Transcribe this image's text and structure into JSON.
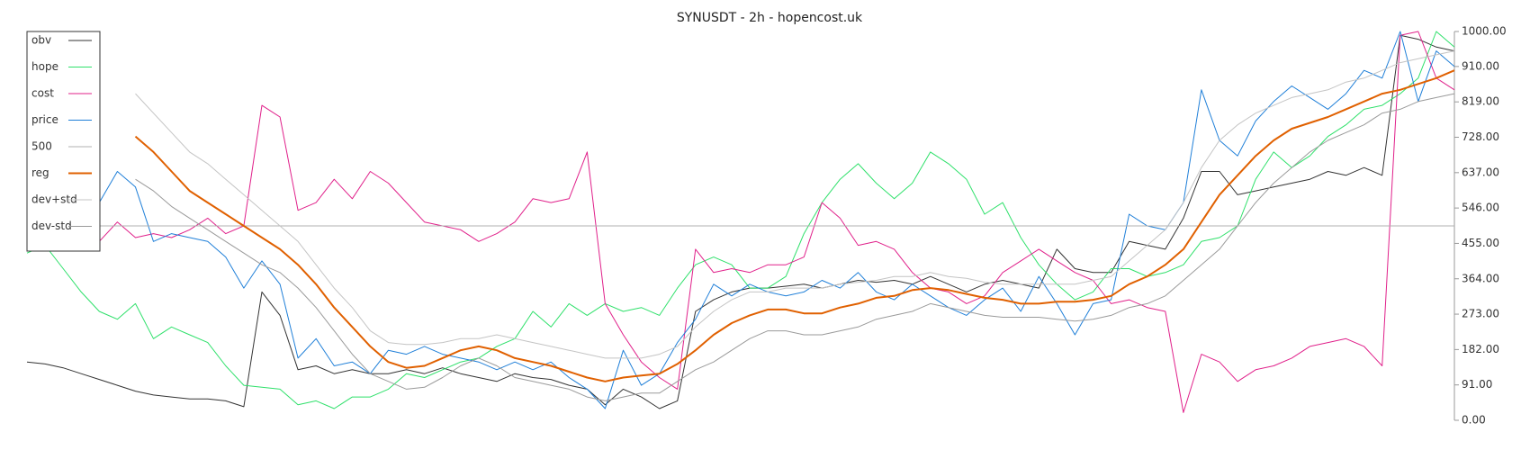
{
  "chart_data": {
    "type": "line",
    "title": "SYNUSDT - 2h - hopencost.uk",
    "ylim": [
      0,
      1000
    ],
    "yticks": [
      {
        "value": 0,
        "label": "0.00"
      },
      {
        "value": 91,
        "label": "91.00"
      },
      {
        "value": 182,
        "label": "182.00"
      },
      {
        "value": 273,
        "label": "273.00"
      },
      {
        "value": 364,
        "label": "364.00"
      },
      {
        "value": 455,
        "label": "455.00"
      },
      {
        "value": 546,
        "label": "546.00"
      },
      {
        "value": 637,
        "label": "637.00"
      },
      {
        "value": 728,
        "label": "728.00"
      },
      {
        "value": 819,
        "label": "819.00"
      },
      {
        "value": 910,
        "label": "910.00"
      },
      {
        "value": 1000,
        "label": "1000.00"
      }
    ],
    "legend": "upper left",
    "series": [
      {
        "name": "obv",
        "color": "#333333",
        "width": 1,
        "values": [
          150,
          145,
          135,
          120,
          105,
          90,
          75,
          65,
          60,
          55,
          55,
          50,
          35,
          330,
          270,
          130,
          140,
          120,
          130,
          120,
          120,
          130,
          120,
          135,
          120,
          110,
          100,
          120,
          110,
          105,
          90,
          80,
          40,
          80,
          60,
          30,
          50,
          280,
          310,
          330,
          340,
          340,
          345,
          350,
          340,
          350,
          360,
          355,
          360,
          350,
          370,
          350,
          330,
          350,
          360,
          350,
          340,
          440,
          390,
          380,
          380,
          460,
          450,
          440,
          520,
          640,
          640,
          580,
          590,
          600,
          610,
          620,
          640,
          630,
          650,
          630,
          990,
          980,
          960,
          950
        ]
      },
      {
        "name": "hope",
        "color": "#2ee06a",
        "width": 1,
        "values": [
          430,
          450,
          390,
          330,
          280,
          260,
          300,
          210,
          240,
          220,
          200,
          140,
          90,
          85,
          80,
          40,
          50,
          30,
          60,
          60,
          80,
          120,
          110,
          130,
          150,
          160,
          190,
          210,
          280,
          240,
          300,
          270,
          300,
          280,
          290,
          270,
          340,
          400,
          420,
          400,
          340,
          340,
          370,
          480,
          560,
          620,
          660,
          610,
          570,
          610,
          690,
          660,
          620,
          530,
          560,
          470,
          400,
          350,
          310,
          330,
          390,
          390,
          370,
          380,
          400,
          460,
          470,
          500,
          620,
          690,
          650,
          680,
          730,
          760,
          800,
          810,
          840,
          880,
          1000,
          960
        ]
      },
      {
        "name": "cost",
        "color": "#e0208a",
        "width": 1,
        "values": [
          480,
          500,
          470,
          490,
          460,
          510,
          470,
          480,
          470,
          490,
          520,
          480,
          500,
          810,
          780,
          540,
          560,
          620,
          570,
          640,
          610,
          560,
          510,
          500,
          490,
          460,
          480,
          510,
          570,
          560,
          570,
          690,
          300,
          220,
          150,
          110,
          80,
          440,
          380,
          390,
          380,
          400,
          400,
          420,
          560,
          520,
          450,
          460,
          440,
          380,
          340,
          330,
          300,
          320,
          380,
          410,
          440,
          410,
          380,
          360,
          300,
          310,
          290,
          280,
          20,
          170,
          150,
          100,
          130,
          140,
          160,
          190,
          200,
          210,
          190,
          140,
          990,
          1000,
          880,
          850
        ]
      },
      {
        "name": "price",
        "color": "#1f7fd8",
        "width": 1,
        "values": [
          560,
          540,
          520,
          580,
          560,
          640,
          600,
          460,
          480,
          470,
          460,
          420,
          340,
          410,
          350,
          160,
          210,
          140,
          150,
          120,
          180,
          170,
          190,
          170,
          160,
          150,
          130,
          150,
          130,
          150,
          110,
          80,
          30,
          180,
          90,
          120,
          200,
          260,
          350,
          320,
          350,
          330,
          320,
          330,
          360,
          340,
          380,
          330,
          310,
          350,
          320,
          290,
          270,
          310,
          340,
          280,
          370,
          300,
          220,
          300,
          310,
          530,
          500,
          490,
          560,
          850,
          720,
          680,
          770,
          820,
          860,
          830,
          800,
          840,
          900,
          880,
          1000,
          820,
          950,
          910
        ]
      },
      {
        "name": "500",
        "color": "#b0b0b0",
        "width": 1,
        "values": [
          500,
          500,
          500,
          500,
          500,
          500,
          500,
          500,
          500,
          500,
          500,
          500,
          500,
          500,
          500,
          500,
          500,
          500,
          500,
          500,
          500,
          500,
          500,
          500,
          500,
          500,
          500,
          500,
          500,
          500,
          500,
          500,
          500,
          500,
          500,
          500,
          500,
          500,
          500,
          500,
          500,
          500,
          500,
          500,
          500,
          500,
          500,
          500,
          500,
          500,
          500,
          500,
          500,
          500,
          500,
          500,
          500,
          500,
          500,
          500,
          500,
          500,
          500,
          500,
          500,
          500,
          500,
          500,
          500,
          500,
          500,
          500,
          500,
          500,
          500,
          500,
          500,
          500,
          500,
          500
        ]
      },
      {
        "name": "reg",
        "color": "#e06000",
        "width": 2,
        "values": [
          null,
          null,
          null,
          null,
          null,
          null,
          730,
          690,
          640,
          590,
          560,
          530,
          500,
          470,
          440,
          400,
          350,
          290,
          240,
          190,
          150,
          135,
          140,
          160,
          180,
          190,
          180,
          160,
          150,
          140,
          125,
          110,
          100,
          110,
          115,
          120,
          145,
          180,
          220,
          250,
          270,
          285,
          285,
          275,
          275,
          290,
          300,
          315,
          320,
          335,
          340,
          335,
          325,
          315,
          310,
          300,
          300,
          305,
          305,
          310,
          320,
          350,
          370,
          400,
          440,
          510,
          580,
          630,
          680,
          720,
          750,
          765,
          780,
          800,
          820,
          840,
          850,
          865,
          880,
          900
        ]
      },
      {
        "name": "dev+std",
        "color": "#c4c4c4",
        "width": 1,
        "values": [
          null,
          null,
          null,
          null,
          null,
          null,
          840,
          790,
          740,
          690,
          660,
          620,
          580,
          540,
          500,
          460,
          400,
          340,
          290,
          230,
          200,
          195,
          195,
          200,
          210,
          210,
          220,
          210,
          200,
          190,
          180,
          170,
          160,
          160,
          160,
          170,
          190,
          240,
          280,
          310,
          330,
          330,
          340,
          340,
          340,
          350,
          355,
          360,
          370,
          370,
          380,
          370,
          365,
          355,
          350,
          350,
          350,
          350,
          350,
          360,
          370,
          410,
          450,
          490,
          560,
          650,
          720,
          760,
          790,
          810,
          830,
          840,
          850,
          870,
          880,
          900,
          920,
          930,
          940,
          950
        ]
      },
      {
        "name": "dev-std",
        "color": "#9a9a9a",
        "width": 1,
        "values": [
          null,
          null,
          null,
          null,
          null,
          null,
          620,
          590,
          550,
          520,
          490,
          460,
          430,
          400,
          380,
          340,
          290,
          230,
          170,
          120,
          100,
          80,
          85,
          110,
          140,
          160,
          140,
          110,
          100,
          90,
          80,
          60,
          50,
          60,
          70,
          70,
          100,
          130,
          150,
          180,
          210,
          230,
          230,
          220,
          220,
          230,
          240,
          260,
          270,
          280,
          300,
          290,
          280,
          270,
          265,
          265,
          265,
          260,
          255,
          260,
          270,
          290,
          300,
          320,
          360,
          400,
          440,
          500,
          560,
          610,
          650,
          690,
          720,
          740,
          760,
          790,
          800,
          820,
          830,
          840
        ]
      }
    ]
  }
}
